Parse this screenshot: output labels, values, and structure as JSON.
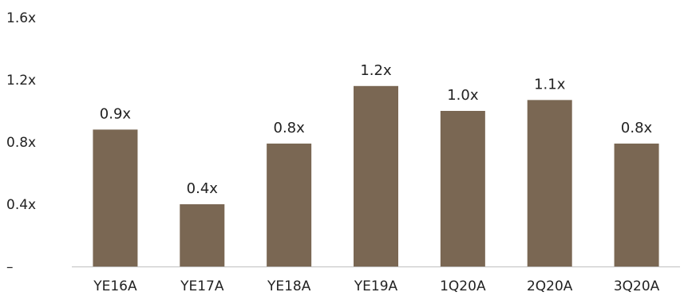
{
  "chart_data": {
    "type": "bar",
    "categories": [
      "YE16A",
      "YE17A",
      "YE18A",
      "YE19A",
      "1Q20A",
      "2Q20A",
      "3Q20A"
    ],
    "values": [
      0.88,
      0.4,
      0.79,
      1.16,
      1.0,
      1.07,
      0.79
    ],
    "data_labels": [
      "0.9x",
      "0.4x",
      "0.8x",
      "1.2x",
      "1.0x",
      "1.1x",
      "0.8x"
    ],
    "y_ticks": [
      {
        "value": 0,
        "label": "–"
      },
      {
        "value": 0.4,
        "label": "0.4x"
      },
      {
        "value": 0.8,
        "label": "0.8x"
      },
      {
        "value": 1.2,
        "label": "1.2x"
      },
      {
        "value": 1.6,
        "label": "1.6x"
      }
    ],
    "ylim": [
      0,
      1.6
    ],
    "grid": false,
    "legend": "none",
    "bar_color": "#7a6753",
    "axis_color": "#bfbfbf",
    "text_color": "#222222"
  }
}
